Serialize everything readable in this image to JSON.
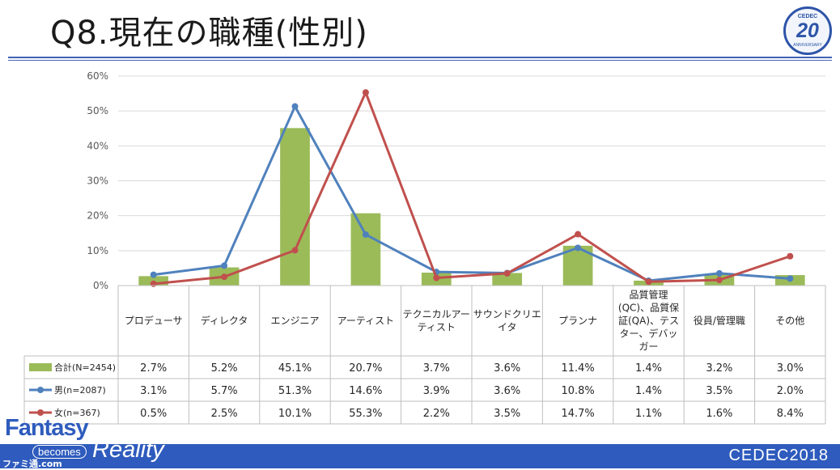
{
  "slide": {
    "title": "Q8.現在の職種(性別)",
    "logo_20": {
      "top": "CEDEC",
      "number": "20",
      "bottom": "ANNIVERSARY"
    },
    "footer_brand": "CEDEC2018",
    "footer_left": {
      "fantasy": "Fantasy",
      "becomes": "becomes",
      "reality": "Reality",
      "watermark": "ファミ通.com"
    }
  },
  "colors": {
    "total": "#9bbb59",
    "male": "#4f81bd",
    "female": "#c0504d",
    "accent": "#2e5bbd"
  },
  "chart_data": {
    "type": "bar",
    "ylim": [
      0,
      60
    ],
    "yticks": [
      0,
      10,
      20,
      30,
      40,
      50,
      60
    ],
    "ytick_labels": [
      "0%",
      "10%",
      "20%",
      "30%",
      "40%",
      "50%",
      "60%"
    ],
    "grid": true,
    "categories": [
      [
        "プロデューサ"
      ],
      [
        "ディレクタ"
      ],
      [
        "エンジニア"
      ],
      [
        "アーティスト"
      ],
      [
        "テクニカルアー",
        "ティスト"
      ],
      [
        "サウンドクリエ",
        "イタ"
      ],
      [
        "プランナ"
      ],
      [
        "品質管理",
        "(QC)、品質保",
        "証(QA)、テス",
        "ター、デバッ",
        "ガー"
      ],
      [
        "役員/管理職"
      ],
      [
        "その他"
      ]
    ],
    "series": [
      {
        "name": "合計(N=2454)",
        "type": "bar",
        "color": "#9bbb59",
        "values": [
          2.7,
          5.2,
          45.1,
          20.7,
          3.7,
          3.6,
          11.4,
          1.4,
          3.2,
          3.0
        ],
        "labels": [
          "2.7%",
          "5.2%",
          "45.1%",
          "20.7%",
          "3.7%",
          "3.6%",
          "11.4%",
          "1.4%",
          "3.2%",
          "3.0%"
        ]
      },
      {
        "name": "男(n=2087)",
        "type": "line",
        "color": "#4f81bd",
        "values": [
          3.1,
          5.7,
          51.3,
          14.6,
          3.9,
          3.6,
          10.8,
          1.4,
          3.5,
          2.0
        ],
        "labels": [
          "3.1%",
          "5.7%",
          "51.3%",
          "14.6%",
          "3.9%",
          "3.6%",
          "10.8%",
          "1.4%",
          "3.5%",
          "2.0%"
        ]
      },
      {
        "name": "女(n=367)",
        "type": "line",
        "color": "#c0504d",
        "values": [
          0.5,
          2.5,
          10.1,
          55.3,
          2.2,
          3.5,
          14.7,
          1.1,
          1.6,
          8.4
        ],
        "labels": [
          "0.5%",
          "2.5%",
          "10.1%",
          "55.3%",
          "2.2%",
          "3.5%",
          "14.7%",
          "1.1%",
          "1.6%",
          "8.4%"
        ]
      }
    ]
  }
}
